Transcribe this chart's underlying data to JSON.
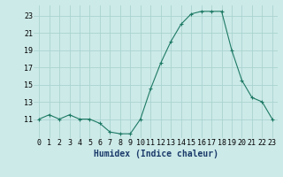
{
  "x": [
    0,
    1,
    2,
    3,
    4,
    5,
    6,
    7,
    8,
    9,
    10,
    11,
    12,
    13,
    14,
    15,
    16,
    17,
    18,
    19,
    20,
    21,
    22,
    23
  ],
  "y": [
    11,
    11.5,
    11,
    11.5,
    11,
    11,
    10.5,
    9.5,
    9.3,
    9.3,
    11,
    14.5,
    17.5,
    20,
    22,
    23.2,
    23.5,
    23.5,
    23.5,
    19,
    15.5,
    13.5,
    13,
    11
  ],
  "line_color": "#1e7a65",
  "marker": "+",
  "marker_size": 3,
  "marker_color": "#1e7a65",
  "bg_color": "#cceae8",
  "grid_color": "#aad4d0",
  "xlabel": "Humidex (Indice chaleur)",
  "xlabel_fontsize": 7,
  "ytick_values": [
    11,
    13,
    15,
    17,
    19,
    21,
    23
  ],
  "xtick_values": [
    0,
    1,
    2,
    3,
    4,
    5,
    6,
    7,
    8,
    9,
    10,
    11,
    12,
    13,
    14,
    15,
    16,
    17,
    18,
    19,
    20,
    21,
    22,
    23
  ],
  "ylim": [
    8.8,
    24.2
  ],
  "xlim": [
    -0.5,
    23.5
  ],
  "tick_fontsize": 6,
  "linewidth": 0.8
}
